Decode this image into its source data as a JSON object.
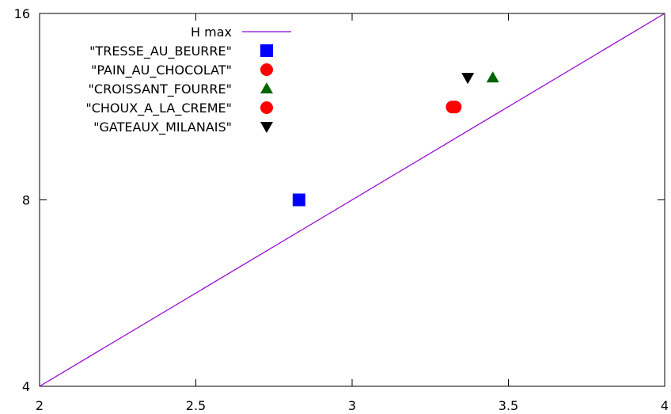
{
  "chart_data": {
    "type": "scatter",
    "title": "",
    "xlabel": "",
    "ylabel": "",
    "x_scale": "linear",
    "y_scale": "log2",
    "xlim": [
      2,
      4
    ],
    "ylim": [
      4,
      16
    ],
    "x_ticks": [
      {
        "value": 2,
        "label": "2"
      },
      {
        "value": 2.5,
        "label": "2.5"
      },
      {
        "value": 3,
        "label": "3"
      },
      {
        "value": 3.5,
        "label": "3.5"
      },
      {
        "value": 4,
        "label": "4"
      }
    ],
    "y_ticks": [
      {
        "value": 4,
        "label": "4"
      },
      {
        "value": 8,
        "label": "8"
      },
      {
        "value": 16,
        "label": "16"
      }
    ],
    "grid": false,
    "legend_position": "top-left",
    "line_series": {
      "name": "H max",
      "color": "#9400d3",
      "points": [
        [
          2,
          4
        ],
        [
          4,
          16
        ]
      ]
    },
    "series": [
      {
        "name": "\"TRESSE_AU_BEURRE\"",
        "marker": "square",
        "color": "#0000ff",
        "x": 2.83,
        "y": 8.0
      },
      {
        "name": "\"PAIN_AU_CHOCOLAT\"",
        "marker": "circle",
        "color": "#ff0000",
        "x": 3.33,
        "y": 11.3
      },
      {
        "name": "\"CROISSANT_FOURRE\"",
        "marker": "triangle-up",
        "color": "#006400",
        "x": 3.45,
        "y": 12.6
      },
      {
        "name": "\"CHOUX_A_LA_CREME\"",
        "marker": "circle",
        "color": "#ff0000",
        "x": 3.32,
        "y": 11.3
      },
      {
        "name": "\"GATEAUX_MILANAIS\"",
        "marker": "triangle-down",
        "color": "#000000",
        "x": 3.37,
        "y": 12.6
      }
    ]
  }
}
